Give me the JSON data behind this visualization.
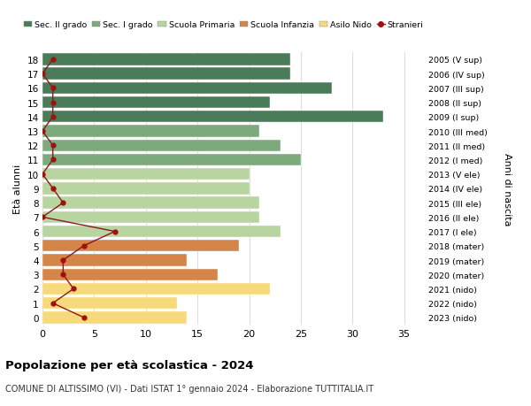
{
  "ages": [
    0,
    1,
    2,
    3,
    4,
    5,
    6,
    7,
    8,
    9,
    10,
    11,
    12,
    13,
    14,
    15,
    16,
    17,
    18
  ],
  "anni_nascita": [
    "2023 (nido)",
    "2022 (nido)",
    "2021 (nido)",
    "2020 (mater)",
    "2019 (mater)",
    "2018 (mater)",
    "2017 (I ele)",
    "2016 (II ele)",
    "2015 (III ele)",
    "2014 (IV ele)",
    "2013 (V ele)",
    "2012 (I med)",
    "2011 (II med)",
    "2010 (III med)",
    "2009 (I sup)",
    "2008 (II sup)",
    "2007 (III sup)",
    "2006 (IV sup)",
    "2005 (V sup)"
  ],
  "bar_values": [
    14,
    13,
    22,
    17,
    14,
    19,
    23,
    21,
    21,
    20,
    20,
    25,
    23,
    21,
    33,
    22,
    28,
    24,
    24
  ],
  "bar_colors": [
    "#f5d97a",
    "#f5d97a",
    "#f5d97a",
    "#d4854a",
    "#d4854a",
    "#d4854a",
    "#b8d4a0",
    "#b8d4a0",
    "#b8d4a0",
    "#b8d4a0",
    "#b8d4a0",
    "#7daa7d",
    "#7daa7d",
    "#7daa7d",
    "#4a7c59",
    "#4a7c59",
    "#4a7c59",
    "#4a7c59",
    "#4a7c59"
  ],
  "stranieri_values": [
    4,
    1,
    3,
    2,
    2,
    4,
    7,
    0,
    2,
    1,
    0,
    1,
    1,
    0,
    1,
    1,
    1,
    0,
    1
  ],
  "legend_labels": [
    "Sec. II grado",
    "Sec. I grado",
    "Scuola Primaria",
    "Scuola Infanzia",
    "Asilo Nido",
    "Stranieri"
  ],
  "legend_colors": [
    "#4a7c59",
    "#7daa7d",
    "#b8d4a0",
    "#d4854a",
    "#f5d97a",
    "#a01010"
  ],
  "ylabel_left": "Età alunni",
  "ylabel_right": "Anni di nascita",
  "title": "Popolazione per età scolastica - 2024",
  "subtitle": "COMUNE DI ALTISSIMO (VI) - Dati ISTAT 1° gennaio 2024 - Elaborazione TUTTITALIA.IT",
  "xlim": [
    0,
    37
  ],
  "background_color": "#ffffff",
  "grid_color": "#dddddd",
  "stranieri_line_color": "#8b1a1a",
  "stranieri_marker_color": "#a01010"
}
